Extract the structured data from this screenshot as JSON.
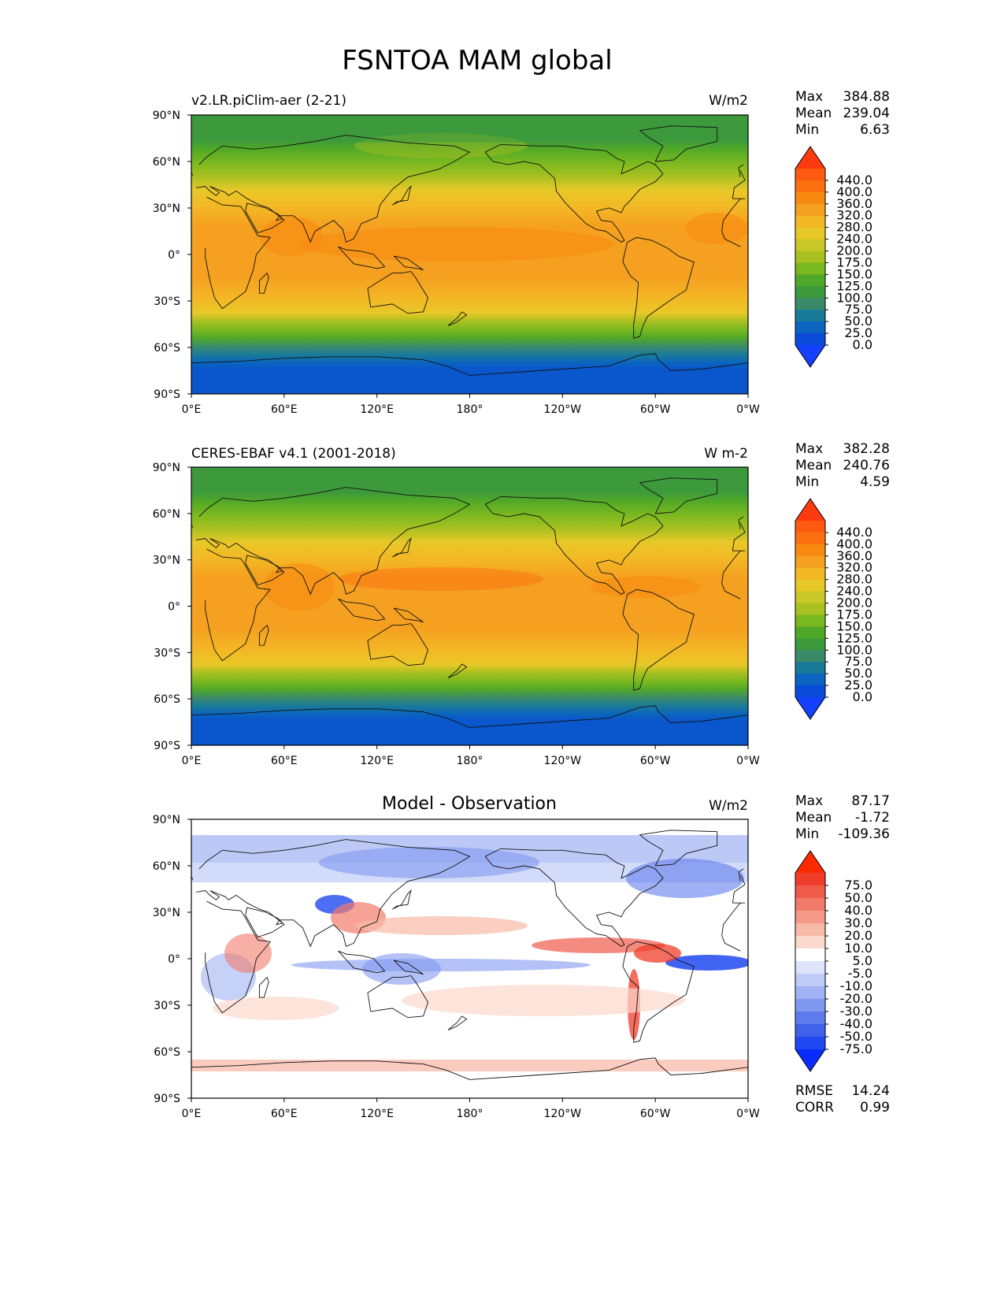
{
  "figure": {
    "title": "FSNTOA MAM global"
  },
  "axes": {
    "lat_labels": [
      "90°N",
      "60°N",
      "30°N",
      "0°",
      "30°S",
      "60°S",
      "90°S"
    ],
    "lon_labels": [
      "0°E",
      "60°E",
      "120°E",
      "180°",
      "120°W",
      "60°W",
      "0°W"
    ]
  },
  "stat_labels": {
    "max": "Max",
    "mean": "Mean",
    "min": "Min",
    "rmse": "RMSE",
    "corr": "CORR"
  },
  "panels": [
    {
      "title_left": "v2.LR.piClim-aer (2-21)",
      "title_center": "",
      "units": "W/m2",
      "stats": {
        "max": "384.88",
        "mean": "239.04",
        "min": "6.63"
      }
    },
    {
      "title_left": "CERES-EBAF v4.1 (2001-2018)",
      "title_center": "",
      "units": "W m-2",
      "stats": {
        "max": "382.28",
        "mean": "240.76",
        "min": "4.59"
      }
    },
    {
      "title_left": "",
      "title_center": "Model - Observation",
      "units": "W/m2",
      "stats": {
        "max": "87.17",
        "mean": "-1.72",
        "min": "-109.36",
        "rmse": "14.24",
        "corr": "0.99"
      }
    }
  ],
  "colorbars": {
    "field": {
      "labels": [
        "440.0",
        "400.0",
        "360.0",
        "320.0",
        "280.0",
        "240.0",
        "200.0",
        "175.0",
        "150.0",
        "125.0",
        "100.0",
        "75.0",
        "50.0",
        "25.0",
        "0.0"
      ],
      "colors": [
        "#ff3a10",
        "#ff5a10",
        "#fb7110",
        "#f88a10",
        "#f5a020",
        "#f3b825",
        "#e8c828",
        "#c8c828",
        "#a8c020",
        "#7ab820",
        "#50a828",
        "#3c9a3c",
        "#3a8a6a",
        "#1a7a9a",
        "#0a64c0",
        "#0a4ad8",
        "#1440ff"
      ]
    },
    "diff": {
      "labels": [
        "75.0",
        "50.0",
        "40.0",
        "30.0",
        "20.0",
        "10.0",
        "5.0",
        "-5.0",
        "-10.0",
        "-20.0",
        "-30.0",
        "-40.0",
        "-50.0",
        "-75.0"
      ],
      "colors": [
        "#ff2a00",
        "#f03c2a",
        "#f05a4a",
        "#f27a6a",
        "#f59a8a",
        "#f8baa8",
        "#fbd8cc",
        "#ffffff",
        "#dde4fa",
        "#c0ccf8",
        "#a0b2f4",
        "#8098f0",
        "#607cec",
        "#4060ea",
        "#2048f0",
        "#0a2cff"
      ]
    }
  },
  "chart_data": [
    {
      "type": "heatmap",
      "title": "v2.LR.piClim-aer (2-21)",
      "units": "W/m2",
      "x_range": [
        0,
        360
      ],
      "y_range": [
        -90,
        90
      ],
      "x_ticks": [
        "0°E",
        "60°E",
        "120°E",
        "180°",
        "120°W",
        "60°W",
        "0°W"
      ],
      "y_ticks": [
        "90°N",
        "60°N",
        "30°N",
        "0°",
        "30°S",
        "60°S",
        "90°S"
      ],
      "levels": [
        0,
        25,
        50,
        75,
        100,
        125,
        150,
        175,
        200,
        240,
        280,
        320,
        360,
        400,
        440
      ],
      "zonal_profile": {
        "lat": [
          90,
          80,
          70,
          60,
          50,
          40,
          30,
          20,
          10,
          0,
          -10,
          -20,
          -30,
          -40,
          -50,
          -60,
          -70,
          -80,
          -90
        ],
        "value": [
          80,
          95,
          110,
          150,
          185,
          235,
          280,
          305,
          300,
          290,
          295,
          285,
          260,
          215,
          150,
          95,
          30,
          10,
          7
        ]
      },
      "stats": {
        "max": 384.88,
        "mean": 239.04,
        "min": 6.63
      }
    },
    {
      "type": "heatmap",
      "title": "CERES-EBAF v4.1 (2001-2018)",
      "units": "W m-2",
      "x_range": [
        0,
        360
      ],
      "y_range": [
        -90,
        90
      ],
      "x_ticks": [
        "0°E",
        "60°E",
        "120°E",
        "180°",
        "120°W",
        "60°W",
        "0°W"
      ],
      "y_ticks": [
        "90°N",
        "60°N",
        "30°N",
        "0°",
        "30°S",
        "60°S",
        "90°S"
      ],
      "levels": [
        0,
        25,
        50,
        75,
        100,
        125,
        150,
        175,
        200,
        240,
        280,
        320,
        360,
        400,
        440
      ],
      "zonal_profile": {
        "lat": [
          90,
          80,
          70,
          60,
          50,
          40,
          30,
          20,
          10,
          0,
          -10,
          -20,
          -30,
          -40,
          -50,
          -60,
          -70,
          -80,
          -90
        ],
        "value": [
          80,
          95,
          115,
          155,
          190,
          240,
          285,
          310,
          305,
          295,
          300,
          288,
          262,
          218,
          152,
          95,
          30,
          10,
          5
        ]
      },
      "stats": {
        "max": 382.28,
        "mean": 240.76,
        "min": 4.59
      }
    },
    {
      "type": "heatmap",
      "title": "Model - Observation",
      "units": "W/m2",
      "x_range": [
        0,
        360
      ],
      "y_range": [
        -90,
        90
      ],
      "x_ticks": [
        "0°E",
        "60°E",
        "120°E",
        "180°",
        "120°W",
        "60°W",
        "0°W"
      ],
      "y_ticks": [
        "90°N",
        "60°N",
        "30°N",
        "0°",
        "30°S",
        "60°S",
        "90°S"
      ],
      "levels": [
        -75,
        -50,
        -40,
        -30,
        -20,
        -10,
        -5,
        5,
        10,
        20,
        30,
        40,
        50,
        75
      ],
      "stats": {
        "max": 87.17,
        "mean": -1.72,
        "min": -109.36,
        "rmse": 14.24,
        "corr": 0.99
      }
    }
  ]
}
